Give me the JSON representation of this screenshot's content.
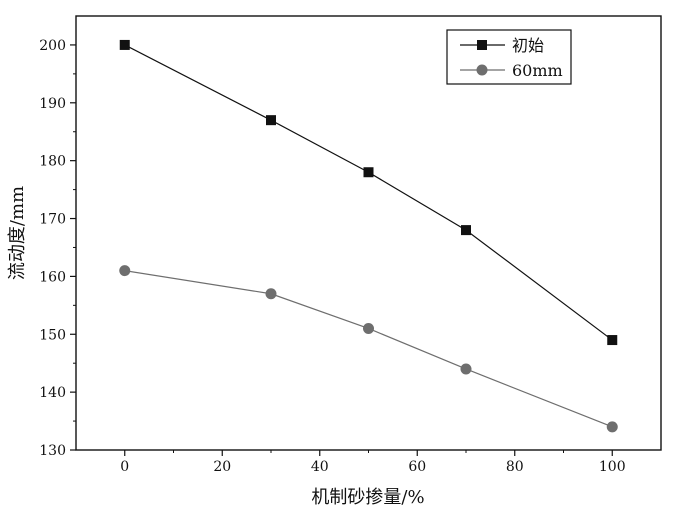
{
  "chart_data": {
    "type": "line",
    "title": "",
    "xlabel": "机制砂掺量/%",
    "ylabel": "流动度/mm",
    "xlim": [
      -10,
      110
    ],
    "ylim": [
      130,
      205
    ],
    "x_ticks": [
      0,
      20,
      40,
      60,
      80,
      100
    ],
    "y_ticks": [
      130,
      140,
      150,
      160,
      170,
      180,
      190,
      200
    ],
    "grid": false,
    "legend_position": "top-right",
    "series": [
      {
        "name": "初始",
        "marker": "square",
        "color": "#111111",
        "x": [
          0,
          30,
          50,
          70,
          100
        ],
        "y": [
          200,
          187,
          178,
          168,
          149
        ]
      },
      {
        "name": "60mm",
        "marker": "circle",
        "color": "#6e6e6e",
        "x": [
          0,
          30,
          50,
          70,
          100
        ],
        "y": [
          161,
          157,
          151,
          144,
          134
        ]
      }
    ]
  }
}
